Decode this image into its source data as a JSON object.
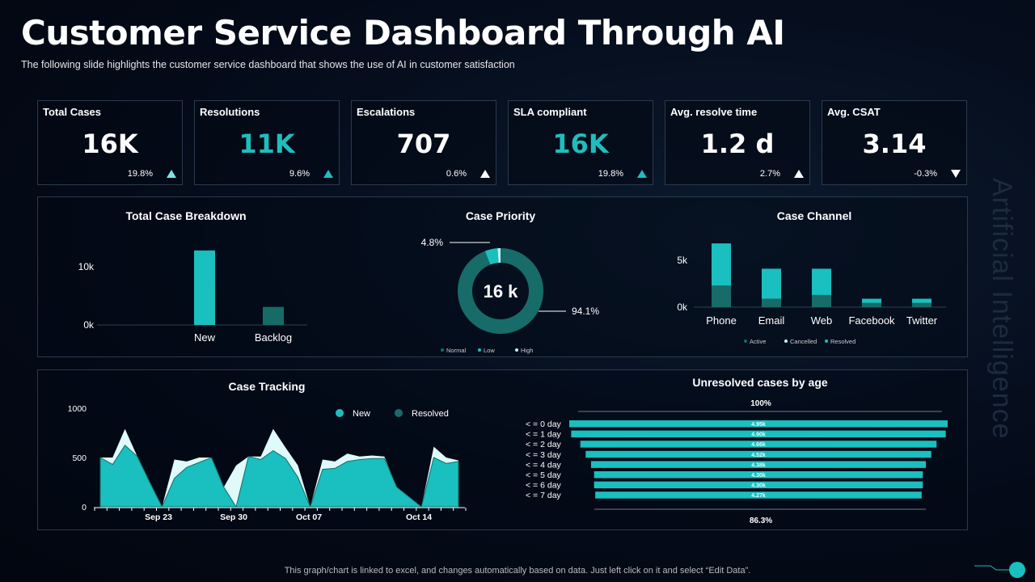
{
  "header": {
    "title": "Customer Service Dashboard Through AI",
    "subtitle": "The following  slide highlights the customer service  dashboard  that shows the use of AI in customer satisfaction"
  },
  "kpis": [
    {
      "label": "Total Cases",
      "value": "16K",
      "change": "19.8%",
      "trend": "up",
      "value_color": "#ffffff",
      "arrow_color": "#7fe3e3"
    },
    {
      "label": "Resolutions",
      "value": "11K",
      "change": "9.6%",
      "trend": "up",
      "value_color": "#1fbdbd",
      "arrow_color": "#1fbdbd"
    },
    {
      "label": "Escalations",
      "value": "707",
      "change": "0.6%",
      "trend": "up",
      "value_color": "#ffffff",
      "arrow_color": "#ffffff"
    },
    {
      "label": "SLA compliant",
      "value": "16K",
      "change": "19.8%",
      "trend": "up",
      "value_color": "#1fbdbd",
      "arrow_color": "#1fbdbd"
    },
    {
      "label": "Avg. resolve time",
      "value": "1.2 d",
      "change": "2.7%",
      "trend": "up",
      "value_color": "#ffffff",
      "arrow_color": "#ffffff"
    },
    {
      "label": "Avg. CSAT",
      "value": "3.14",
      "change": "-0.3%",
      "trend": "down",
      "value_color": "#ffffff",
      "arrow_color": "#ffffff"
    }
  ],
  "side_text": "Artificial Intelligence",
  "footer": "This graph/chart is linked to excel, and changes automatically based on data. Just left click on it and select “Edit Data”.",
  "chart_data": [
    {
      "type": "bar",
      "title": "Total Case Breakdown",
      "categories": [
        "New",
        "Backlog"
      ],
      "values": [
        12800,
        3100
      ],
      "y_ticks": [
        "0k",
        "10k"
      ],
      "ylim": [
        0,
        13000
      ],
      "colors": [
        "#1abfbf",
        "#156b66"
      ]
    },
    {
      "type": "pie",
      "title": "Case Priority",
      "center_label": "16 k",
      "slices": [
        {
          "name": "Normal",
          "value": 94.1,
          "label": "94.1%",
          "color": "#176b68"
        },
        {
          "name": "Low",
          "value": 4.8,
          "label": "4.8%",
          "color": "#1abfbf"
        },
        {
          "name": "High",
          "value": 1.1,
          "color": "#bff3f3"
        }
      ]
    },
    {
      "type": "bar",
      "stacked": true,
      "title": "Case Channel",
      "categories": [
        "Phone",
        "Email",
        "Web",
        "Facebook",
        "Twitter"
      ],
      "y_ticks": [
        "0k",
        "5k"
      ],
      "ylim": [
        0,
        7000
      ],
      "series": [
        {
          "name": "Active",
          "values": [
            2300,
            900,
            1300,
            450,
            450
          ],
          "color": "#176b68"
        },
        {
          "name": "Cancelled",
          "values": [
            0,
            0,
            0,
            0,
            0
          ],
          "color": "#bff3f3"
        },
        {
          "name": "Resolved",
          "values": [
            4500,
            3200,
            2800,
            450,
            450
          ],
          "color": "#1abfbf"
        }
      ]
    },
    {
      "type": "area",
      "title": "Case Tracking",
      "y_ticks": [
        "0",
        "500",
        "1000"
      ],
      "ylim": [
        0,
        1000
      ],
      "x_ticks": [
        "Sep 23",
        "Sep 30",
        "Oct 07",
        "Oct 14"
      ],
      "series": [
        {
          "name": "New",
          "color": "#1fbdbd",
          "values": [
            500,
            500,
            790,
            510,
            250,
            0,
            480,
            460,
            500,
            500,
            200,
            420,
            510,
            510,
            790,
            600,
            420,
            0,
            480,
            460,
            540,
            510,
            520,
            510,
            200,
            100,
            0,
            610,
            500,
            470
          ]
        },
        {
          "name": "Resolved",
          "color": "#176b68",
          "values": [
            500,
            430,
            625,
            510,
            250,
            0,
            290,
            400,
            450,
            500,
            200,
            0,
            510,
            480,
            570,
            490,
            300,
            0,
            380,
            390,
            460,
            480,
            490,
            490,
            200,
            100,
            0,
            500,
            440,
            460
          ]
        }
      ]
    },
    {
      "type": "bar",
      "orientation": "horizontal",
      "title": "Unresolved cases by age",
      "top_label": "100%",
      "bottom_label": "86.3%",
      "categories": [
        "< = 0 day",
        "< = 1 day",
        "< = 2 day",
        "< = 3 day",
        "< = 4 day",
        "< = 5 day",
        "< = 6 day",
        "< = 7 day"
      ],
      "values": [
        4.95,
        4.9,
        4.66,
        4.52,
        4.38,
        4.3,
        4.3,
        4.27
      ],
      "value_labels": [
        "4.95k",
        "4.90k",
        "4.66k",
        "4.52k",
        "4.38k",
        "4.30k",
        "4.30k",
        "4.27k"
      ],
      "color": "#1abfbf"
    }
  ]
}
